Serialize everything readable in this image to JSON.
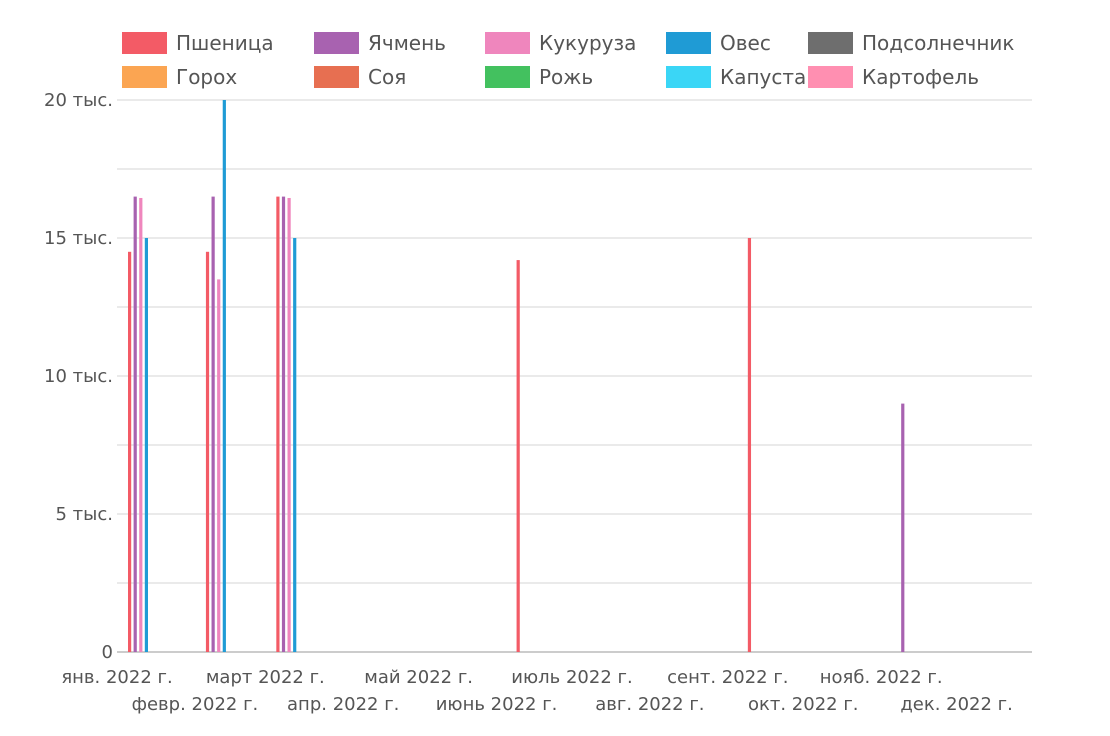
{
  "chart_data": {
    "type": "bar",
    "x_type": "time",
    "x_ticks_row1": [
      "янв. 2022 г.",
      "март 2022 г.",
      "май 2022 г.",
      "июль 2022 г.",
      "сент. 2022 г.",
      "нояб. 2022 г."
    ],
    "x_ticks_row2": [
      "февр. 2022 г.",
      "апр. 2022 г.",
      "июнь 2022 г.",
      "авг. 2022 г.",
      "окт. 2022 г.",
      "дек. 2022 г."
    ],
    "y_ticks": [
      {
        "value": 0,
        "label": "0"
      },
      {
        "value": 5000,
        "label": "5 тыс."
      },
      {
        "value": 10000,
        "label": "10 тыс."
      },
      {
        "value": 15000,
        "label": "15 тыс."
      },
      {
        "value": 20000,
        "label": "20 тыс."
      }
    ],
    "ylim": [
      0,
      20000
    ],
    "grid": true,
    "legend_position": "top",
    "series": [
      {
        "name": "Пшеница",
        "color": "#f35b66",
        "points": [
          {
            "x": "2022-01-01",
            "y": 14500
          },
          {
            "x": "2022-02-01",
            "y": 14500
          },
          {
            "x": "2022-03-01",
            "y": 16500
          },
          {
            "x": "2022-06-01",
            "y": 14200
          },
          {
            "x": "2022-09-01",
            "y": 15000
          }
        ]
      },
      {
        "name": "Ячмень",
        "color": "#a862b0",
        "points": [
          {
            "x": "2022-01-01",
            "y": 16500
          },
          {
            "x": "2022-02-01",
            "y": 16500
          },
          {
            "x": "2022-03-01",
            "y": 16500
          },
          {
            "x": "2022-11-01",
            "y": 9000
          }
        ]
      },
      {
        "name": "Кукуруза",
        "color": "#ef86bd",
        "points": [
          {
            "x": "2022-01-01",
            "y": 16450
          },
          {
            "x": "2022-02-01",
            "y": 13500
          },
          {
            "x": "2022-03-01",
            "y": 16450
          }
        ]
      },
      {
        "name": "Овес",
        "color": "#1f9bd5",
        "points": [
          {
            "x": "2022-01-01",
            "y": 15000
          },
          {
            "x": "2022-02-01",
            "y": 20000
          },
          {
            "x": "2022-03-01",
            "y": 15000
          }
        ]
      },
      {
        "name": "Подсолнечник",
        "color": "#6e6e6e",
        "points": []
      },
      {
        "name": "Горох",
        "color": "#fba552",
        "points": []
      },
      {
        "name": "Соя",
        "color": "#e76f51",
        "points": []
      },
      {
        "name": "Рожь",
        "color": "#43c15f",
        "points": []
      },
      {
        "name": "Капуста",
        "color": "#3ad6f6",
        "points": []
      },
      {
        "name": "Картофель",
        "color": "#ff8fb1",
        "points": []
      }
    ]
  }
}
